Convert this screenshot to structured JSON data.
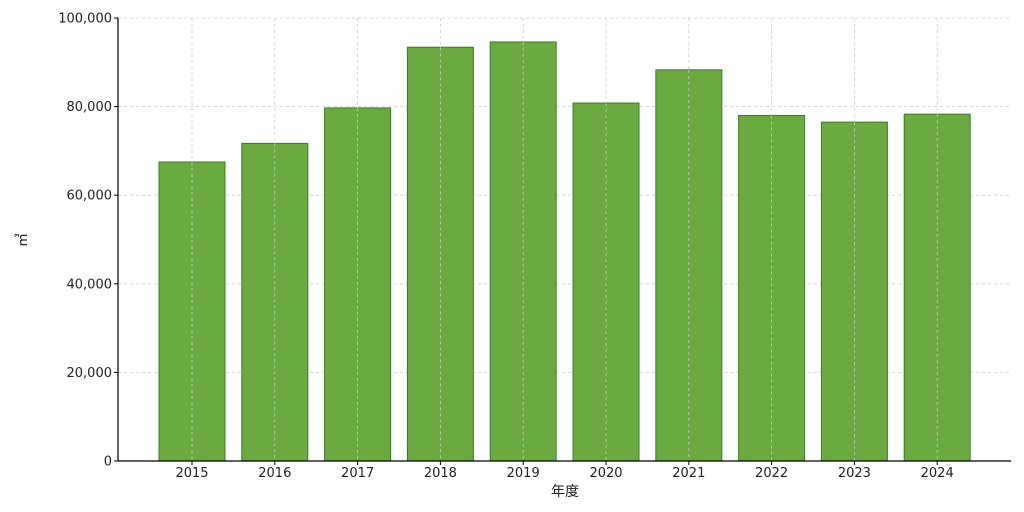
{
  "chart_data": {
    "type": "bar",
    "title": "",
    "xlabel": "年度",
    "ylabel": "㎥",
    "categories": [
      "2015",
      "2016",
      "2017",
      "2018",
      "2019",
      "2020",
      "2021",
      "2022",
      "2023",
      "2024"
    ],
    "values": [
      67500,
      71700,
      79700,
      93400,
      94600,
      80800,
      88300,
      78000,
      76500,
      78300
    ],
    "ylim": [
      0,
      100000
    ],
    "yticks": [
      "0",
      "20,000",
      "40,000",
      "60,000",
      "80,000",
      "100,000"
    ],
    "ytick_values": [
      0,
      20000,
      40000,
      60000,
      80000,
      100000
    ],
    "grid": true,
    "legend": "none",
    "colors": {
      "bar_fill": "#6aaa41",
      "bar_edge": "#3c7a24"
    }
  }
}
